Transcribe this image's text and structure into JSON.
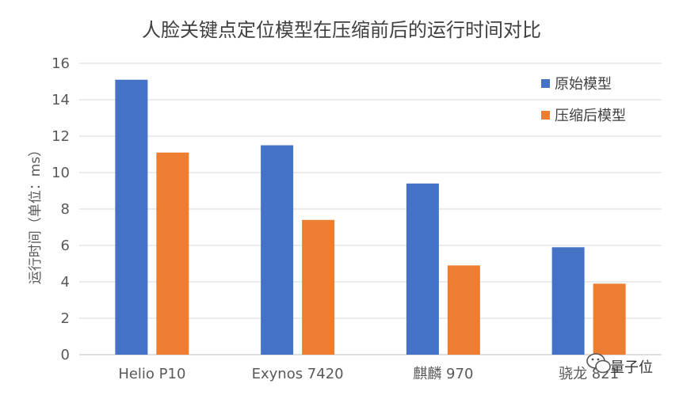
{
  "chart_data": {
    "type": "bar",
    "title": "人脸关键点定位模型在压缩前后的运行时间对比",
    "xlabel": "",
    "ylabel": "运行时间（单位：ms）",
    "ylim": [
      0,
      16
    ],
    "yticks": [
      0,
      2,
      4,
      6,
      8,
      10,
      12,
      14,
      16
    ],
    "grid": true,
    "legend_position": "top-right",
    "categories": [
      "Helio P10",
      "Exynos 7420",
      "麒麟 970",
      "骁龙 821"
    ],
    "series": [
      {
        "name": "原始模型",
        "color": "#4472c4",
        "values": [
          15.1,
          11.5,
          9.4,
          5.9
        ]
      },
      {
        "name": "压缩后模型",
        "color": "#ed7d31",
        "values": [
          11.1,
          7.4,
          4.9,
          3.9
        ]
      }
    ]
  },
  "watermark": {
    "text": "量子位",
    "icon": "wechat-icon"
  }
}
